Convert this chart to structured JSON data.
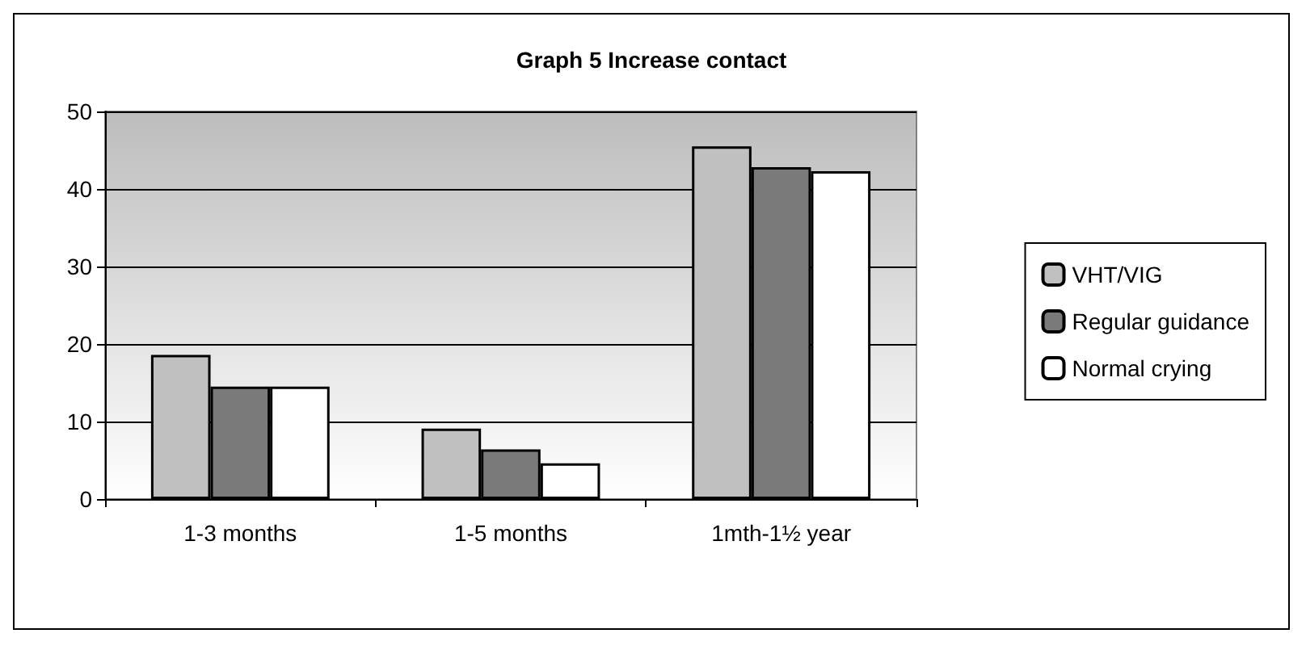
{
  "chart_data": {
    "type": "bar",
    "title": "Graph 5 Increase contact",
    "categories": [
      "1-3 months",
      "1-5 months",
      "1mth-1½ year"
    ],
    "series": [
      {
        "name": "VHT/VIG",
        "color": "#c0c0c0",
        "values": [
          18.6,
          9.1,
          45.5
        ]
      },
      {
        "name": "Regular guidance",
        "color": "#7a7a7a",
        "values": [
          14.5,
          6.4,
          42.8
        ]
      },
      {
        "name": "Normal crying",
        "color": "#ffffff",
        "values": [
          14.5,
          4.6,
          42.3
        ]
      }
    ],
    "ylim": [
      0,
      50
    ],
    "yticks": [
      0,
      10,
      20,
      30,
      40,
      50
    ],
    "grid": "y",
    "legend": "right"
  }
}
